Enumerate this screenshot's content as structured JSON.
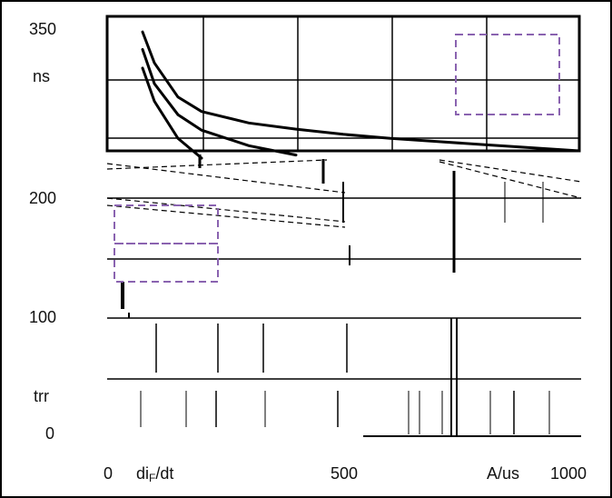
{
  "chart_data": {
    "type": "line",
    "title": "",
    "xlabel": "diF/dt",
    "ylabel": "trr",
    "x_unit": "A/us",
    "y_unit": "ns",
    "xlim": [
      0,
      1000
    ],
    "ylim": [
      0,
      350
    ],
    "x_tick_labels": [
      "0",
      "500",
      "1000"
    ],
    "y_tick_labels": [
      "350",
      "200",
      "100",
      "0"
    ],
    "grid": true,
    "series": [
      {
        "x": [
          75,
          100,
          150,
          200,
          300,
          400,
          500,
          600,
          700,
          800,
          900,
          1000
        ],
        "y": [
          335,
          305,
          272,
          258,
          247,
          241,
          236,
          232,
          229,
          226,
          223,
          220
        ]
      },
      {
        "x": [
          75,
          100,
          150,
          200,
          300,
          400
        ],
        "y": [
          318,
          285,
          255,
          240,
          225,
          216
        ]
      },
      {
        "x": [
          75,
          100,
          150,
          200
        ],
        "y": [
          300,
          268,
          232,
          213
        ]
      }
    ],
    "placeholder_boxes": [
      "upper-right",
      "left-middle"
    ]
  },
  "colors": {
    "frame": "#000000",
    "grid": "#000000",
    "curve": "#000000",
    "placeholder_box": "#8a63b0"
  }
}
